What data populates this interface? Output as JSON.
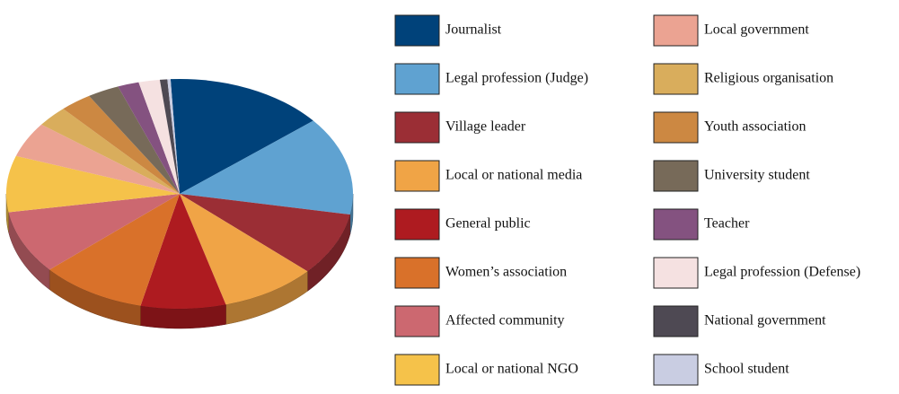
{
  "chart_data": {
    "type": "pie",
    "categories": [
      "Journalist",
      "Legal profession (Judge)",
      "Village leader",
      "Local or national media",
      "General public",
      "Women’s association",
      "Affected community",
      "Local or national NGO",
      "Local government",
      "Religious organisation",
      "Youth association",
      "University student",
      "Teacher",
      "Legal profession (Defense)",
      "National government",
      "School student"
    ],
    "values": [
      15,
      14,
      9,
      9,
      8,
      10,
      9,
      8,
      5,
      3,
      3,
      3,
      2,
      2,
      0.7,
      0.3
    ],
    "colors": [
      "#00427a",
      "#5fa2d1",
      "#9b2e35",
      "#f0a446",
      "#ae1b20",
      "#d9712a",
      "#cc6870",
      "#f5c24a",
      "#eba392",
      "#d9ad5c",
      "#cc8842",
      "#776a59",
      "#845280",
      "#f5e1e1",
      "#4e4953",
      "#c9cde2"
    ]
  }
}
